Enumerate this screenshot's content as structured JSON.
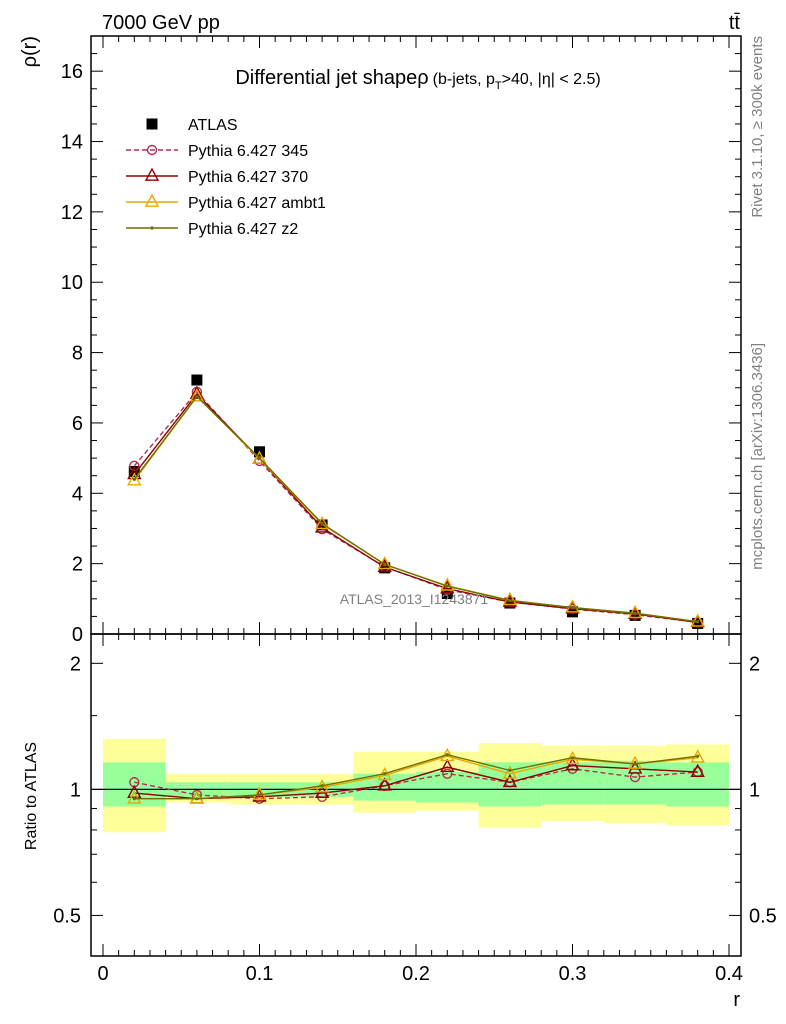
{
  "header": {
    "energy_label": "7000 GeV pp",
    "process_label": "tt̄"
  },
  "side_labels": {
    "rivet": "Rivet 3.1.10, ≥ 300k events",
    "mcplots": "mcplots.cern.ch [arXiv:1306.3436]"
  },
  "watermark": "ATLAS_2013_I1243871",
  "chart_data": [
    {
      "type": "line",
      "panel": "main",
      "title": "Differential jet shapeρ",
      "title_suffix_parts": [
        "(b-jets, p",
        "T",
        ">40, |η| < 2.5)"
      ],
      "ylabel": "ρ(r)",
      "xlabel": "",
      "xlim": [
        0,
        0.4
      ],
      "ylim": [
        0,
        17
      ],
      "yticks": [
        0,
        2,
        4,
        6,
        8,
        10,
        12,
        14,
        16
      ],
      "x": [
        0.02,
        0.06,
        0.1,
        0.14,
        0.18,
        0.22,
        0.26,
        0.3,
        0.34,
        0.38
      ],
      "series": [
        {
          "name": "ATLAS",
          "color": "#000000",
          "marker": "square",
          "values": [
            4.62,
            7.22,
            5.18,
            3.1,
            1.88,
            1.15,
            0.88,
            0.63,
            0.53,
            0.3
          ]
        },
        {
          "name": "Pythia 6.427 345",
          "color": "#b03050",
          "marker": "circle",
          "dashed": true,
          "values": [
            4.78,
            6.88,
            4.92,
            2.98,
            1.91,
            1.26,
            0.91,
            0.71,
            0.55,
            0.33
          ]
        },
        {
          "name": "Pythia 6.427 370",
          "color": "#8b0000",
          "marker": "triangle",
          "values": [
            4.54,
            6.82,
            4.98,
            3.02,
            1.9,
            1.29,
            0.91,
            0.72,
            0.57,
            0.33
          ]
        },
        {
          "name": "Pythia 6.427 ambt1",
          "color": "#e8a800",
          "marker": "triangle",
          "values": [
            4.36,
            6.75,
            4.98,
            3.12,
            1.98,
            1.37,
            0.96,
            0.75,
            0.59,
            0.35
          ]
        },
        {
          "name": "Pythia 6.427 z2",
          "color": "#6b7000",
          "marker": "dot",
          "values": [
            4.4,
            6.75,
            5.0,
            3.14,
            1.98,
            1.36,
            0.95,
            0.75,
            0.59,
            0.35
          ]
        }
      ]
    },
    {
      "type": "line",
      "panel": "ratio",
      "ylabel": "Ratio to ATLAS",
      "xlabel": "r",
      "xlim": [
        0,
        0.4
      ],
      "ylim": [
        0.4,
        2.35
      ],
      "yscale": "log",
      "yticks": [
        0.5,
        1,
        2
      ],
      "xticks": [
        0,
        0.1,
        0.2,
        0.3,
        0.4
      ],
      "x": [
        0.02,
        0.06,
        0.1,
        0.14,
        0.18,
        0.22,
        0.26,
        0.3,
        0.34,
        0.38
      ],
      "bin_edges": [
        0.0,
        0.04,
        0.08,
        0.12,
        0.16,
        0.2,
        0.24,
        0.28,
        0.32,
        0.36,
        0.4
      ],
      "bands": {
        "total_uncertainty": {
          "color": "#ffff99",
          "low": [
            0.79,
            0.93,
            0.92,
            0.92,
            0.88,
            0.89,
            0.81,
            0.84,
            0.83,
            0.82
          ],
          "high": [
            1.32,
            1.09,
            1.09,
            1.09,
            1.23,
            1.23,
            1.29,
            1.27,
            1.27,
            1.28
          ]
        },
        "stat_uncertainty": {
          "color": "#99ff99",
          "low": [
            0.91,
            0.96,
            0.96,
            0.96,
            0.94,
            0.93,
            0.91,
            0.92,
            0.92,
            0.91
          ],
          "high": [
            1.16,
            1.04,
            1.04,
            1.04,
            1.09,
            1.1,
            1.16,
            1.16,
            1.17,
            1.16
          ]
        }
      },
      "series": [
        {
          "name": "Pythia 6.427 345",
          "color": "#b03050",
          "marker": "circle",
          "dashed": true,
          "values": [
            1.04,
            0.97,
            0.95,
            0.96,
            1.02,
            1.09,
            1.04,
            1.12,
            1.07,
            1.1
          ]
        },
        {
          "name": "Pythia 6.427 370",
          "color": "#8b0000",
          "marker": "triangle",
          "values": [
            0.98,
            0.95,
            0.96,
            0.98,
            1.02,
            1.13,
            1.04,
            1.14,
            1.12,
            1.1
          ]
        },
        {
          "name": "Pythia 6.427 ambt1",
          "color": "#e8a800",
          "marker": "triangle",
          "values": [
            0.95,
            0.95,
            0.97,
            1.01,
            1.08,
            1.2,
            1.09,
            1.18,
            1.15,
            1.19
          ]
        },
        {
          "name": "Pythia 6.427 z2",
          "color": "#6b7000",
          "marker": "dot",
          "values": [
            0.95,
            0.95,
            0.97,
            1.02,
            1.09,
            1.21,
            1.11,
            1.19,
            1.15,
            1.2
          ]
        }
      ]
    }
  ]
}
